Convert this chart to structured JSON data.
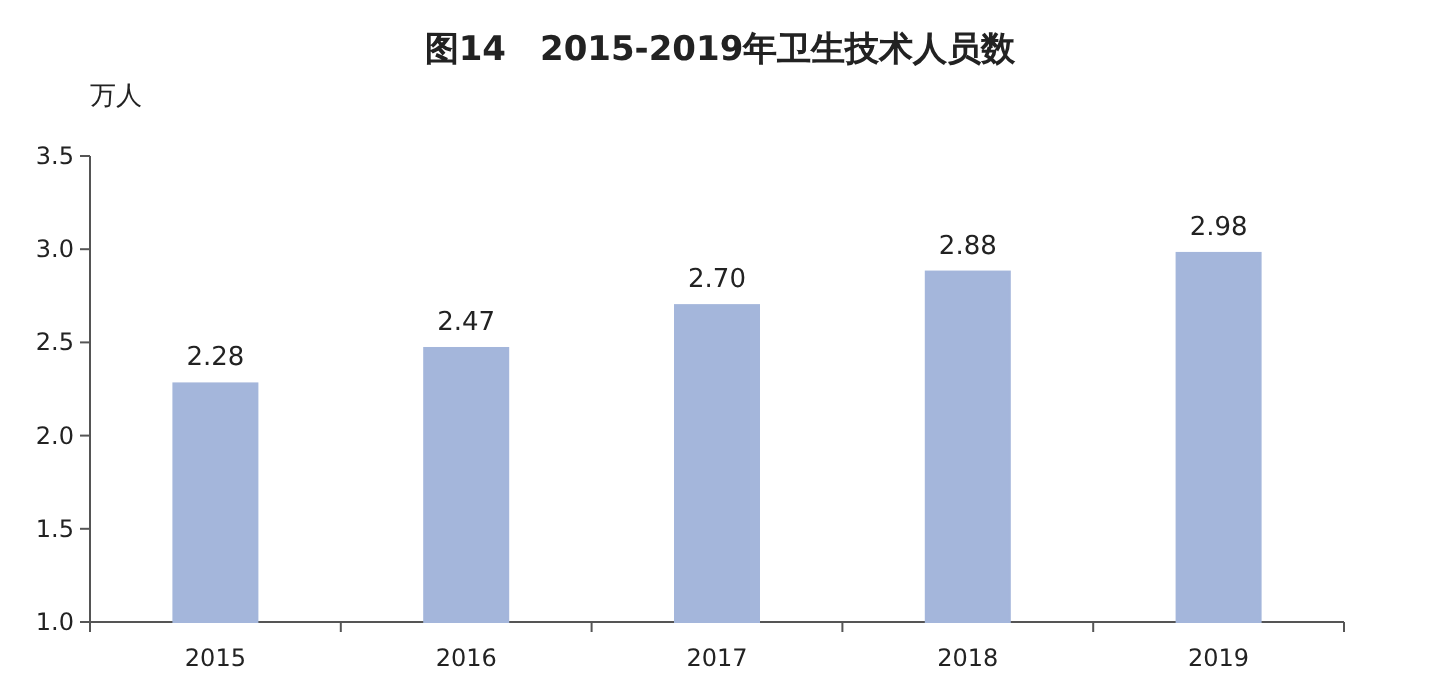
{
  "chart_data": {
    "type": "bar",
    "title": "图14　2015-2019年卫生技术人员数",
    "ylabel": "万人",
    "categories": [
      "2015",
      "2016",
      "2017",
      "2018",
      "2019"
    ],
    "values": [
      2.28,
      2.47,
      2.7,
      2.88,
      2.98
    ],
    "value_labels": [
      "2.28",
      "2.47",
      "2.70",
      "2.88",
      "2.98"
    ],
    "color": "#a4b6db",
    "ylim": [
      1.0,
      3.5
    ],
    "yticks": [
      {
        "value": 1,
        "label": "1.0"
      },
      1.5,
      {
        "value": 2,
        "label": "2.0"
      },
      2.5,
      {
        "value": 3,
        "label": "3.0"
      },
      3.5
    ]
  }
}
